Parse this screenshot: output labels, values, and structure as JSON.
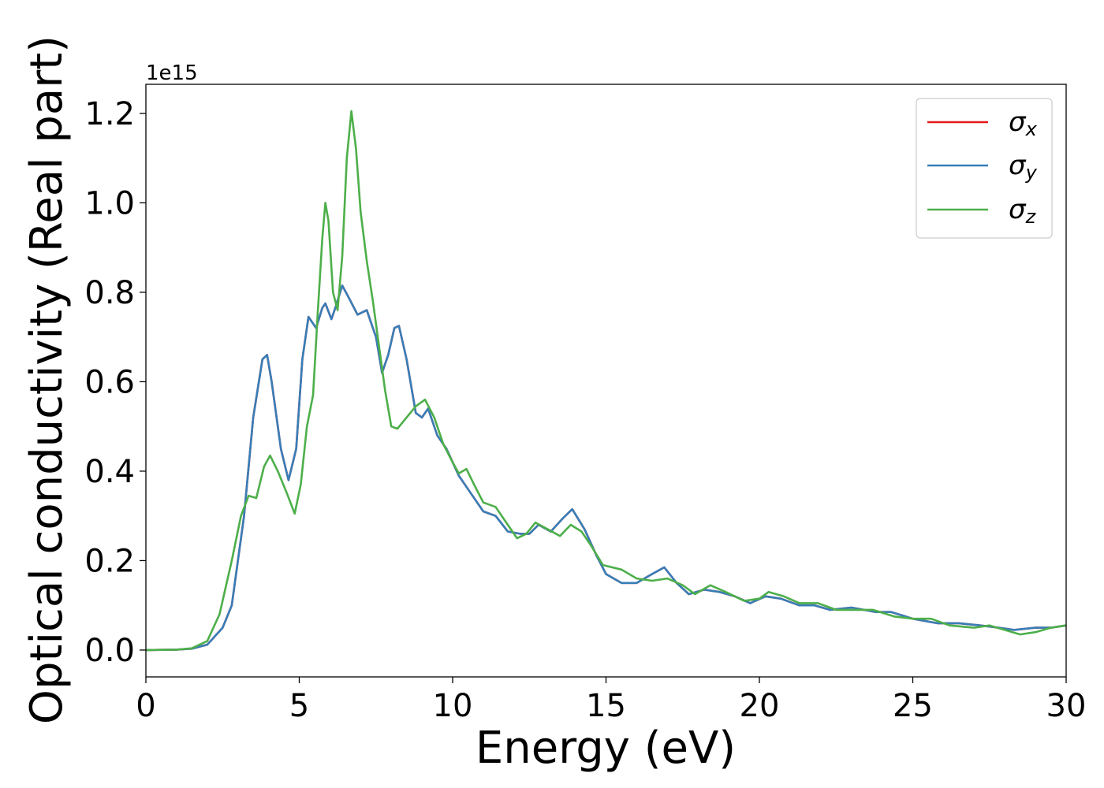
{
  "chart_data": {
    "type": "line",
    "title": "",
    "xlabel": "Energy (eV)",
    "ylabel": "Optical conductivity (Real part)",
    "y_offset_text": "1e15",
    "xlim": [
      0,
      30
    ],
    "ylim": [
      -0.06,
      1.265
    ],
    "xticks": [
      0,
      5,
      10,
      15,
      20,
      25,
      30
    ],
    "xtick_labels": [
      "0",
      "5",
      "10",
      "15",
      "20",
      "25",
      "30"
    ],
    "yticks": [
      0.0,
      0.2,
      0.4,
      0.6,
      0.8,
      1.0,
      1.2
    ],
    "ytick_labels": [
      "0.0",
      "0.2",
      "0.4",
      "0.6",
      "0.8",
      "1.0",
      "1.2"
    ],
    "grid": false,
    "legend_position": "top-right",
    "series": [
      {
        "name": "σx",
        "legend_symbol": "σ",
        "legend_sub": "x",
        "color": "#e41a1c",
        "points": [
          [
            0,
            0
          ],
          [
            1,
            0.001
          ],
          [
            1.5,
            0.003
          ],
          [
            2,
            0.012
          ],
          [
            2.5,
            0.05
          ],
          [
            2.8,
            0.1
          ],
          [
            3.2,
            0.3
          ],
          [
            3.5,
            0.52
          ],
          [
            3.8,
            0.65
          ],
          [
            3.95,
            0.66
          ],
          [
            4.1,
            0.6
          ],
          [
            4.4,
            0.45
          ],
          [
            4.65,
            0.38
          ],
          [
            4.9,
            0.45
          ],
          [
            5.1,
            0.65
          ],
          [
            5.3,
            0.745
          ],
          [
            5.55,
            0.72
          ],
          [
            5.75,
            0.765
          ],
          [
            5.85,
            0.775
          ],
          [
            6.05,
            0.74
          ],
          [
            6.2,
            0.77
          ],
          [
            6.4,
            0.815
          ],
          [
            6.6,
            0.79
          ],
          [
            6.9,
            0.75
          ],
          [
            7.2,
            0.76
          ],
          [
            7.5,
            0.7
          ],
          [
            7.7,
            0.62
          ],
          [
            7.9,
            0.66
          ],
          [
            8.1,
            0.72
          ],
          [
            8.25,
            0.725
          ],
          [
            8.5,
            0.65
          ],
          [
            8.8,
            0.53
          ],
          [
            9.0,
            0.52
          ],
          [
            9.2,
            0.54
          ],
          [
            9.5,
            0.48
          ],
          [
            9.8,
            0.45
          ],
          [
            10.2,
            0.39
          ],
          [
            10.6,
            0.35
          ],
          [
            11.0,
            0.31
          ],
          [
            11.4,
            0.3
          ],
          [
            11.8,
            0.265
          ],
          [
            12.2,
            0.26
          ],
          [
            12.5,
            0.26
          ],
          [
            12.8,
            0.28
          ],
          [
            13.2,
            0.265
          ],
          [
            13.6,
            0.295
          ],
          [
            13.9,
            0.315
          ],
          [
            14.3,
            0.27
          ],
          [
            14.7,
            0.21
          ],
          [
            15.0,
            0.17
          ],
          [
            15.5,
            0.15
          ],
          [
            16.0,
            0.15
          ],
          [
            16.5,
            0.17
          ],
          [
            16.9,
            0.185
          ],
          [
            17.3,
            0.15
          ],
          [
            17.7,
            0.125
          ],
          [
            18.2,
            0.135
          ],
          [
            18.7,
            0.13
          ],
          [
            19.2,
            0.12
          ],
          [
            19.7,
            0.105
          ],
          [
            20.2,
            0.12
          ],
          [
            20.7,
            0.115
          ],
          [
            21.3,
            0.1
          ],
          [
            21.8,
            0.1
          ],
          [
            22.3,
            0.09
          ],
          [
            23.0,
            0.095
          ],
          [
            23.8,
            0.085
          ],
          [
            24.3,
            0.085
          ],
          [
            25.0,
            0.07
          ],
          [
            25.8,
            0.06
          ],
          [
            26.5,
            0.06
          ],
          [
            27.2,
            0.055
          ],
          [
            27.8,
            0.05
          ],
          [
            28.3,
            0.045
          ],
          [
            29.0,
            0.05
          ],
          [
            29.5,
            0.05
          ],
          [
            30,
            0.055
          ]
        ]
      },
      {
        "name": "σy",
        "legend_symbol": "σ",
        "legend_sub": "y",
        "color": "#377eb8",
        "points": [
          [
            0,
            0
          ],
          [
            1,
            0.001
          ],
          [
            1.5,
            0.003
          ],
          [
            2,
            0.012
          ],
          [
            2.5,
            0.05
          ],
          [
            2.8,
            0.1
          ],
          [
            3.2,
            0.3
          ],
          [
            3.5,
            0.52
          ],
          [
            3.8,
            0.65
          ],
          [
            3.95,
            0.66
          ],
          [
            4.1,
            0.6
          ],
          [
            4.4,
            0.45
          ],
          [
            4.65,
            0.38
          ],
          [
            4.9,
            0.45
          ],
          [
            5.1,
            0.65
          ],
          [
            5.3,
            0.745
          ],
          [
            5.55,
            0.72
          ],
          [
            5.75,
            0.765
          ],
          [
            5.85,
            0.775
          ],
          [
            6.05,
            0.74
          ],
          [
            6.2,
            0.77
          ],
          [
            6.4,
            0.815
          ],
          [
            6.6,
            0.79
          ],
          [
            6.9,
            0.75
          ],
          [
            7.2,
            0.76
          ],
          [
            7.5,
            0.7
          ],
          [
            7.7,
            0.62
          ],
          [
            7.9,
            0.66
          ],
          [
            8.1,
            0.72
          ],
          [
            8.25,
            0.725
          ],
          [
            8.5,
            0.65
          ],
          [
            8.8,
            0.53
          ],
          [
            9.0,
            0.52
          ],
          [
            9.2,
            0.54
          ],
          [
            9.5,
            0.48
          ],
          [
            9.8,
            0.45
          ],
          [
            10.2,
            0.39
          ],
          [
            10.6,
            0.35
          ],
          [
            11.0,
            0.31
          ],
          [
            11.4,
            0.3
          ],
          [
            11.8,
            0.265
          ],
          [
            12.2,
            0.26
          ],
          [
            12.5,
            0.26
          ],
          [
            12.8,
            0.28
          ],
          [
            13.2,
            0.265
          ],
          [
            13.6,
            0.295
          ],
          [
            13.9,
            0.315
          ],
          [
            14.3,
            0.27
          ],
          [
            14.7,
            0.21
          ],
          [
            15.0,
            0.17
          ],
          [
            15.5,
            0.15
          ],
          [
            16.0,
            0.15
          ],
          [
            16.5,
            0.17
          ],
          [
            16.9,
            0.185
          ],
          [
            17.3,
            0.15
          ],
          [
            17.7,
            0.125
          ],
          [
            18.2,
            0.135
          ],
          [
            18.7,
            0.13
          ],
          [
            19.2,
            0.12
          ],
          [
            19.7,
            0.105
          ],
          [
            20.2,
            0.12
          ],
          [
            20.7,
            0.115
          ],
          [
            21.3,
            0.1
          ],
          [
            21.8,
            0.1
          ],
          [
            22.3,
            0.09
          ],
          [
            23.0,
            0.095
          ],
          [
            23.8,
            0.085
          ],
          [
            24.3,
            0.085
          ],
          [
            25.0,
            0.07
          ],
          [
            25.8,
            0.06
          ],
          [
            26.5,
            0.06
          ],
          [
            27.2,
            0.055
          ],
          [
            27.8,
            0.05
          ],
          [
            28.3,
            0.045
          ],
          [
            29.0,
            0.05
          ],
          [
            29.5,
            0.05
          ],
          [
            30,
            0.055
          ]
        ]
      },
      {
        "name": "σz",
        "legend_symbol": "σ",
        "legend_sub": "z",
        "color": "#4daf4a",
        "points": [
          [
            0,
            0
          ],
          [
            1,
            0.001
          ],
          [
            1.5,
            0.004
          ],
          [
            2,
            0.02
          ],
          [
            2.4,
            0.08
          ],
          [
            2.8,
            0.2
          ],
          [
            3.1,
            0.3
          ],
          [
            3.35,
            0.345
          ],
          [
            3.6,
            0.34
          ],
          [
            3.85,
            0.41
          ],
          [
            4.05,
            0.435
          ],
          [
            4.3,
            0.4
          ],
          [
            4.6,
            0.35
          ],
          [
            4.85,
            0.305
          ],
          [
            5.05,
            0.37
          ],
          [
            5.25,
            0.5
          ],
          [
            5.45,
            0.57
          ],
          [
            5.6,
            0.75
          ],
          [
            5.75,
            0.92
          ],
          [
            5.85,
            1.0
          ],
          [
            5.95,
            0.96
          ],
          [
            6.1,
            0.8
          ],
          [
            6.25,
            0.76
          ],
          [
            6.4,
            0.88
          ],
          [
            6.55,
            1.1
          ],
          [
            6.7,
            1.205
          ],
          [
            6.85,
            1.12
          ],
          [
            7.0,
            0.98
          ],
          [
            7.2,
            0.87
          ],
          [
            7.4,
            0.78
          ],
          [
            7.6,
            0.68
          ],
          [
            7.8,
            0.58
          ],
          [
            8.0,
            0.5
          ],
          [
            8.2,
            0.495
          ],
          [
            8.5,
            0.52
          ],
          [
            8.8,
            0.545
          ],
          [
            9.1,
            0.56
          ],
          [
            9.4,
            0.52
          ],
          [
            9.7,
            0.46
          ],
          [
            10.0,
            0.42
          ],
          [
            10.2,
            0.395
          ],
          [
            10.45,
            0.405
          ],
          [
            10.7,
            0.37
          ],
          [
            11.0,
            0.33
          ],
          [
            11.4,
            0.32
          ],
          [
            11.7,
            0.29
          ],
          [
            12.1,
            0.25
          ],
          [
            12.4,
            0.26
          ],
          [
            12.7,
            0.285
          ],
          [
            13.1,
            0.27
          ],
          [
            13.5,
            0.255
          ],
          [
            13.85,
            0.28
          ],
          [
            14.2,
            0.265
          ],
          [
            14.5,
            0.235
          ],
          [
            14.9,
            0.19
          ],
          [
            15.5,
            0.18
          ],
          [
            16.0,
            0.16
          ],
          [
            16.5,
            0.155
          ],
          [
            17.0,
            0.16
          ],
          [
            17.5,
            0.145
          ],
          [
            17.9,
            0.125
          ],
          [
            18.4,
            0.145
          ],
          [
            18.9,
            0.13
          ],
          [
            19.5,
            0.11
          ],
          [
            20.0,
            0.115
          ],
          [
            20.3,
            0.13
          ],
          [
            20.8,
            0.12
          ],
          [
            21.3,
            0.105
          ],
          [
            21.9,
            0.105
          ],
          [
            22.5,
            0.09
          ],
          [
            23.1,
            0.09
          ],
          [
            23.7,
            0.09
          ],
          [
            24.4,
            0.075
          ],
          [
            25.0,
            0.07
          ],
          [
            25.6,
            0.07
          ],
          [
            26.2,
            0.055
          ],
          [
            27.0,
            0.05
          ],
          [
            27.5,
            0.055
          ],
          [
            28.0,
            0.045
          ],
          [
            28.5,
            0.035
          ],
          [
            29.0,
            0.04
          ],
          [
            29.5,
            0.05
          ],
          [
            30,
            0.055
          ]
        ]
      }
    ]
  }
}
